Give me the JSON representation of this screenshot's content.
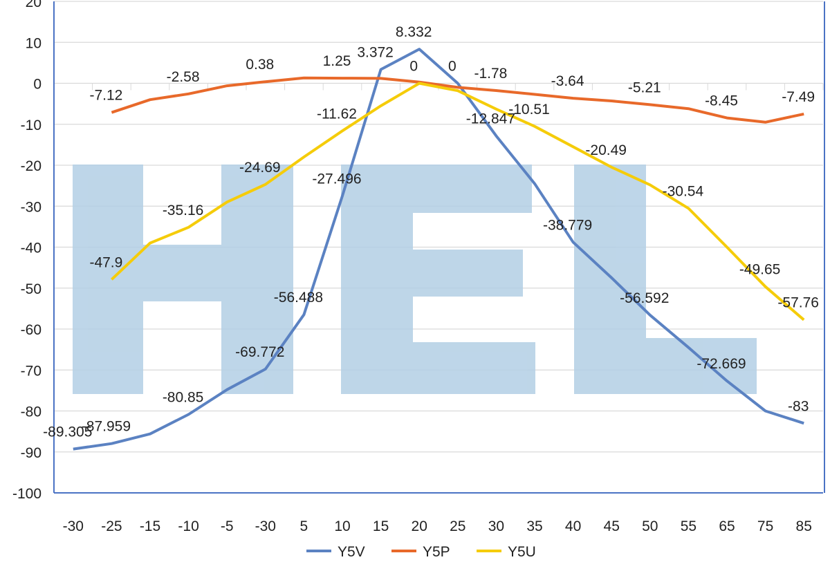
{
  "chart_data": {
    "type": "line",
    "title": "",
    "xlabel": "",
    "ylabel": "",
    "ylim": [
      -100,
      20
    ],
    "yticks": [
      20,
      10,
      0,
      -10,
      -20,
      -30,
      -40,
      -50,
      -60,
      -70,
      -80,
      -90,
      -100
    ],
    "grid": true,
    "legend": "bottom",
    "categories": [
      "-30",
      "-25",
      "-15",
      "-10",
      "-5",
      "-30",
      "5",
      "10",
      "15",
      "20",
      "25",
      "30",
      "35",
      "40",
      "45",
      "50",
      "55",
      "65",
      "75",
      "85"
    ],
    "series": [
      {
        "name": "Y5V",
        "color": "#5b82c2",
        "values": [
          -89.305,
          -87.959,
          -85.6,
          -80.85,
          -74.8,
          -69.772,
          -56.488,
          -27.496,
          3.372,
          8.332,
          0,
          -12.847,
          -24.5,
          -38.779,
          -47.5,
          -56.592,
          -64.5,
          -72.669,
          -80,
          -83
        ],
        "labels": [
          "-89.305",
          "-87.959",
          null,
          "-80.85",
          null,
          "-69.772",
          "-56.488",
          "-27.496",
          "3.372",
          "8.332",
          "0",
          "-12.847",
          null,
          "-38.779",
          null,
          "-56.592",
          null,
          "-72.669",
          null,
          "-83"
        ]
      },
      {
        "name": "Y5P",
        "color": "#e8692a",
        "values": [
          null,
          -7.12,
          -4,
          -2.58,
          -0.6,
          0.38,
          1.3,
          1.25,
          1.2,
          0.3,
          -1,
          -1.78,
          -2.7,
          -3.64,
          -4.3,
          -5.21,
          -6.2,
          -8.45,
          -9.5,
          -7.49
        ],
        "labels": [
          null,
          "-7.12",
          null,
          "-2.58",
          null,
          "0.38",
          null,
          "1.25",
          null,
          null,
          null,
          "-1.78",
          null,
          "-3.64",
          null,
          "-5.21",
          null,
          "-8.45",
          null,
          "-7.49"
        ]
      },
      {
        "name": "Y5U",
        "color": "#f5cc0a",
        "values": [
          null,
          -47.9,
          -39,
          -35.16,
          -29,
          -24.69,
          -18,
          -11.62,
          -5.5,
          0,
          -1.8,
          -6.3,
          -10.51,
          -15.5,
          -20.49,
          -24.8,
          -30.54,
          -40,
          -49.65,
          -57.76
        ],
        "labels": [
          null,
          "-47.9",
          null,
          "-35.16",
          null,
          "-24.69",
          null,
          "-11.62",
          null,
          "0",
          null,
          null,
          "-10.51",
          null,
          "-20.49",
          null,
          "-30.54",
          null,
          "-49.65",
          "-57.76"
        ]
      }
    ]
  },
  "watermark": {
    "text": "HEL",
    "color": "#b3cfe5"
  }
}
